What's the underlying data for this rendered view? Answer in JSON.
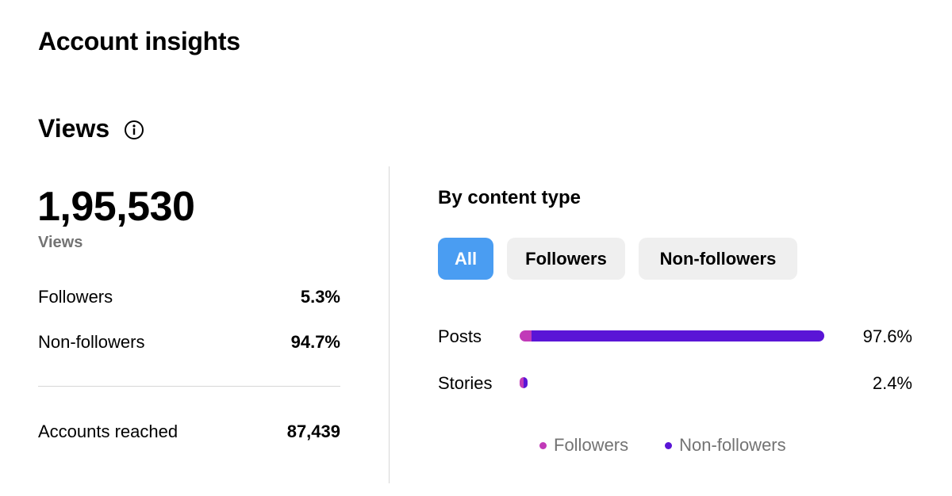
{
  "page": {
    "title": "Account insights"
  },
  "views": {
    "section_title": "Views",
    "info_icon": "info-circle-icon",
    "total": "1,95,530",
    "total_caption": "Views",
    "followers_label": "Followers",
    "followers_value": "5.3%",
    "nonfollowers_label": "Non-followers",
    "nonfollowers_value": "94.7%",
    "reached_label": "Accounts reached",
    "reached_value": "87,439"
  },
  "content_type": {
    "title": "By content type",
    "filters": [
      {
        "label": "All",
        "active": true
      },
      {
        "label": "Followers",
        "active": false
      },
      {
        "label": "Non-followers",
        "active": false
      }
    ],
    "rows": [
      {
        "label": "Posts",
        "percent_label": "97.6%",
        "share": 0.976,
        "followers_fraction": 0.04
      },
      {
        "label": "Stories",
        "percent_label": "2.4%",
        "share": 0.024,
        "followers_fraction": 0.5
      }
    ],
    "legend": [
      {
        "label": "Followers",
        "color": "#c13ab8"
      },
      {
        "label": "Non-followers",
        "color": "#5a15d6"
      }
    ]
  },
  "colors": {
    "followers": "#c13ab8",
    "non_followers": "#5a15d6",
    "active_chip": "#4a9df2",
    "muted_text": "#737373"
  }
}
